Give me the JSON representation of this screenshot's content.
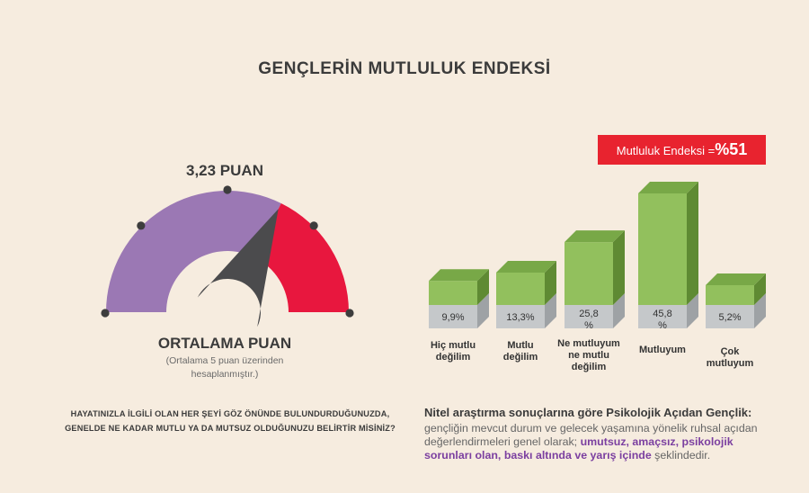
{
  "title": "GENÇLERİN MUTLULUK ENDEKSİ",
  "gauge": {
    "score_label": "3,23 PUAN",
    "score": 3.23,
    "max": 5,
    "label": "ORTALAMA PUAN",
    "note_line1": "(Ortalama 5 puan üzerinden",
    "note_line2": "hesaplanmıştır.)",
    "colors": {
      "low": "#9b78b4",
      "high": "#e8173e",
      "needle": "#4b4b4d",
      "dots": "#3d3d3d"
    }
  },
  "question": {
    "line1": "HAYATINIZLA İLGİLİ OLAN HER ŞEYİ GÖZ ÖNÜNDE BULUNDURDUĞUNUZDA,",
    "line2": "GENELDE NE KADAR MUTLU YA DA MUTSUZ OLDUĞUNUZU BELİRTİR MİSİNİZ?"
  },
  "banner": {
    "text": "Mutluluk Endeksi =",
    "value": "%51",
    "color": "#e8232f"
  },
  "chart_data": {
    "type": "bar",
    "categories": [
      [
        "Hiç mutlu",
        "değilim"
      ],
      [
        "Mutlu",
        "değilim"
      ],
      [
        "Ne mutluyum",
        "ne mutlu",
        "değilim"
      ],
      [
        "Mutluyum"
      ],
      [
        "Çok",
        "mutluyum"
      ]
    ],
    "values": [
      9.9,
      13.3,
      25.8,
      45.8,
      5.2
    ],
    "value_labels": [
      [
        "9,9%"
      ],
      [
        "13,3%"
      ],
      [
        "25,8",
        "%"
      ],
      [
        "45,8",
        "%"
      ],
      [
        "5,2%"
      ]
    ],
    "colors": {
      "front": "#92c05d",
      "side": "#5f8a33",
      "top": "#78a847",
      "base_front": "#c5c8ca",
      "base_side": "#9ea2a5"
    }
  },
  "nitel": {
    "title": "Nitel araştırma sonuçlarına göre Psikolojik Açıdan Gençlik:",
    "text1": "gençliğin mevcut durum ve gelecek yaşamına yönelik ruhsal açıdan değerlendirmeleri genel olarak; ",
    "highlight": "umutsuz, amaçsız, psikolojik sorunları olan, baskı altında ve yarış içinde",
    "text2": " şeklindedir."
  }
}
